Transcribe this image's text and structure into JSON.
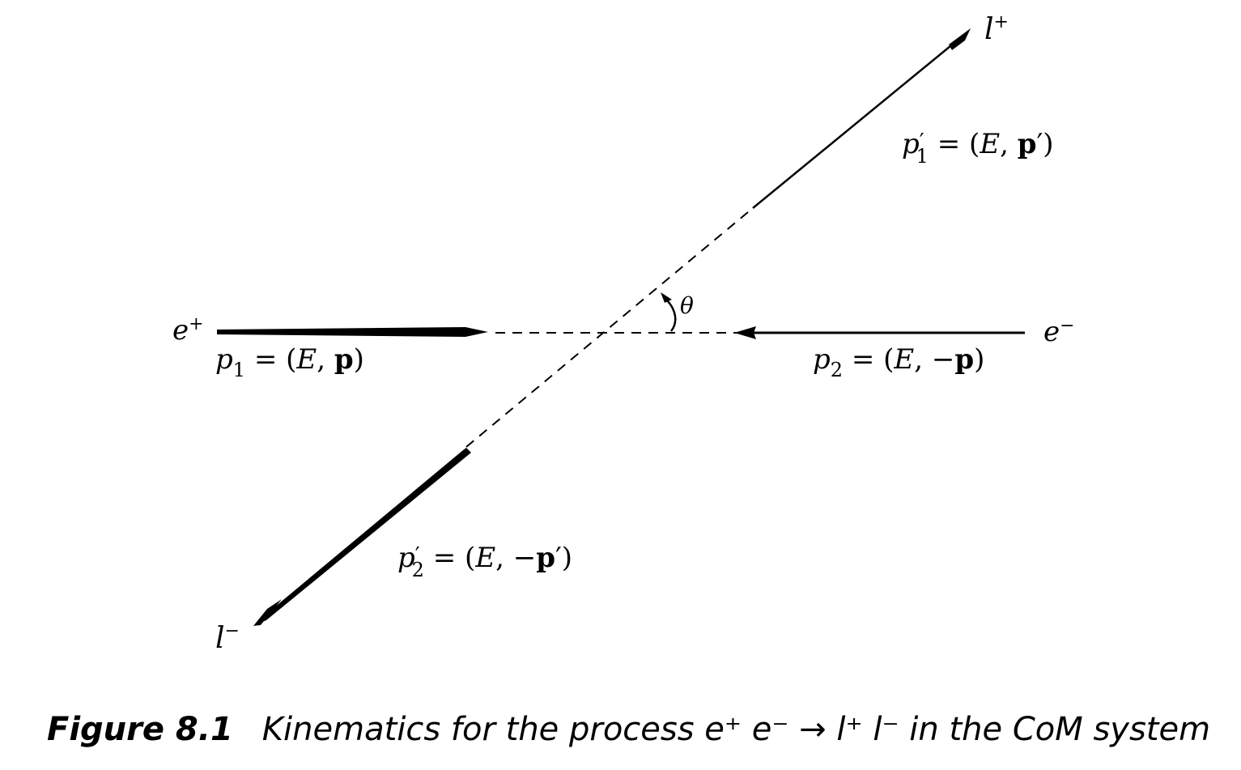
{
  "particles": {
    "positron_symbol": "e",
    "positron_charge": "+",
    "electron_symbol": "e",
    "electron_charge": "−",
    "lepton_plus_symbol": "l",
    "lepton_plus_charge": "+",
    "lepton_minus_symbol": "l",
    "lepton_minus_charge": "−"
  },
  "momenta": {
    "p1": {
      "symbol": "p",
      "subscript": "1",
      "prime": "",
      "open": " = (",
      "energy": "E",
      "sep": ", ",
      "sign": "",
      "vector": "p",
      "vec_prime": "",
      "close": ")"
    },
    "p2": {
      "symbol": "p",
      "subscript": "2",
      "prime": "",
      "open": " = (",
      "energy": "E",
      "sep": ", ",
      "sign": "−",
      "vector": "p",
      "vec_prime": "",
      "close": ")"
    },
    "p1_prime": {
      "symbol": "p",
      "subscript": "1",
      "prime": "′",
      "open": " = (",
      "energy": "E",
      "sep": ", ",
      "sign": "",
      "vector": "p",
      "vec_prime": "′",
      "close": ")"
    },
    "p2_prime": {
      "symbol": "p",
      "subscript": "2",
      "prime": "′",
      "open": " = (",
      "energy": "E",
      "sep": ", ",
      "sign": "−",
      "vector": "p",
      "vec_prime": "′",
      "close": ")"
    }
  },
  "angle_label": "θ",
  "caption": {
    "label": "Figure 8.1",
    "text": "Kinematics for the process e⁺ e⁻ → l⁺ l⁻ in the CoM system"
  }
}
